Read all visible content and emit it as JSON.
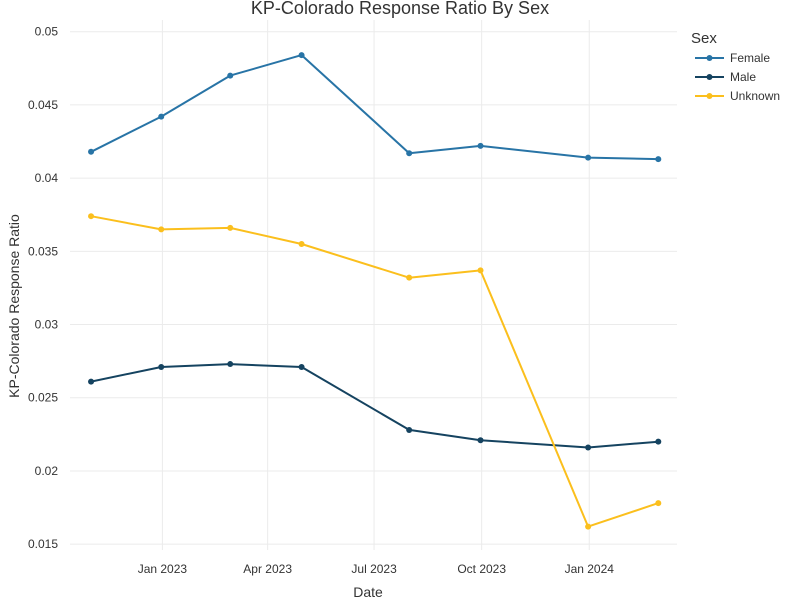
{
  "chart_data": {
    "type": "line",
    "title": "KP-Colorado Response Ratio By Sex",
    "xlabel": "Date",
    "ylabel": "KP-Colorado Response Ratio",
    "x": [
      "2022-11-01",
      "2022-12-31",
      "2023-02-28",
      "2023-04-30",
      "2023-07-31",
      "2023-09-30",
      "2023-12-31",
      "2024-02-29"
    ],
    "x_ticks": [
      {
        "date": "2023-01-01",
        "label": "Jan 2023"
      },
      {
        "date": "2023-04-01",
        "label": "Apr 2023"
      },
      {
        "date": "2023-07-01",
        "label": "Jul 2023"
      },
      {
        "date": "2023-10-01",
        "label": "Oct 2023"
      },
      {
        "date": "2024-01-01",
        "label": "Jan 2024"
      }
    ],
    "xlim": [
      "2022-10-14",
      "2024-03-16"
    ],
    "ylim": [
      0.0146,
      0.0508
    ],
    "y_ticks": [
      {
        "value": 0.015,
        "label": "0.015"
      },
      {
        "value": 0.02,
        "label": "0.02"
      },
      {
        "value": 0.025,
        "label": "0.025"
      },
      {
        "value": 0.03,
        "label": "0.03"
      },
      {
        "value": 0.035,
        "label": "0.035"
      },
      {
        "value": 0.04,
        "label": "0.04"
      },
      {
        "value": 0.045,
        "label": "0.045"
      },
      {
        "value": 0.05,
        "label": "0.05"
      }
    ],
    "grid": true,
    "legend_title": "Sex",
    "legend_position": "top-right",
    "series": [
      {
        "name": "Female",
        "color": "#2874a6",
        "values": [
          0.0418,
          0.0442,
          0.047,
          0.0484,
          0.0417,
          0.0422,
          0.0414,
          0.0413
        ]
      },
      {
        "name": "Male",
        "color": "#154360",
        "values": [
          0.0261,
          0.0271,
          0.0273,
          0.0271,
          0.0228,
          0.0221,
          0.0216,
          0.022
        ]
      },
      {
        "name": "Unknown",
        "color": "#fbbf1d",
        "values": [
          0.0374,
          0.0365,
          0.0366,
          0.0355,
          0.0332,
          0.0337,
          0.0162,
          0.0178
        ]
      }
    ]
  }
}
